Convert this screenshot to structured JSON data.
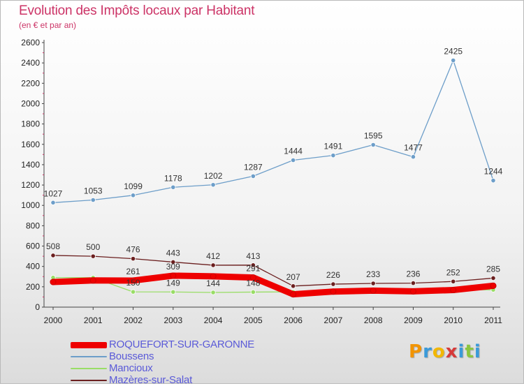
{
  "title": "Evolution des Impôts locaux par Habitant",
  "subtitle": "(en € et par an)",
  "logo": {
    "letters": [
      "P",
      "r",
      "o",
      "x",
      "i",
      "t",
      "i"
    ],
    "colors": [
      "#f29400",
      "#3a9ad9",
      "#f2b700",
      "#d63a3a",
      "#3a9ad9",
      "#8cc63f",
      "#3a9ad9"
    ]
  },
  "chart_data": {
    "type": "line",
    "x": [
      "2000",
      "2001",
      "2002",
      "2003",
      "2004",
      "2005",
      "2006",
      "2007",
      "2008",
      "2009",
      "2010",
      "2011"
    ],
    "ylim": [
      0,
      2600
    ],
    "yticks": [
      0,
      200,
      400,
      600,
      800,
      1000,
      1200,
      1400,
      1600,
      1800,
      2000,
      2200,
      2400,
      2600
    ],
    "grid": false,
    "legend_position": "bottom-left",
    "series": [
      {
        "name": "ROQUEFORT-SUR-GARONNE",
        "color": "#ee0000",
        "values": [
          247,
          262,
          261,
          309,
          303,
          291,
          126,
          153,
          162,
          155,
          168,
          210
        ],
        "labels_shown": [
          false,
          false,
          true,
          true,
          false,
          true,
          false,
          false,
          false,
          false,
          false,
          false
        ]
      },
      {
        "name": "Boussens",
        "color": "#6d9ec9",
        "values": [
          1027,
          1053,
          1099,
          1178,
          1202,
          1287,
          1444,
          1491,
          1595,
          1477,
          2425,
          1244
        ],
        "labels_shown": [
          true,
          true,
          true,
          true,
          true,
          true,
          true,
          true,
          true,
          true,
          true,
          true
        ]
      },
      {
        "name": "Mancioux",
        "color": "#99dd66",
        "values": [
          290,
          290,
          150,
          149,
          144,
          148,
          150,
          160,
          170,
          165,
          172,
          170
        ],
        "labels_shown": [
          false,
          false,
          true,
          true,
          true,
          true,
          false,
          false,
          false,
          false,
          false,
          false
        ]
      },
      {
        "name": "Mazères-sur-Salat",
        "color": "#6b1f1f",
        "values": [
          508,
          500,
          476,
          443,
          412,
          413,
          207,
          226,
          233,
          236,
          252,
          285
        ],
        "labels_shown": [
          true,
          true,
          true,
          true,
          true,
          true,
          true,
          true,
          true,
          true,
          true,
          true
        ]
      }
    ]
  }
}
